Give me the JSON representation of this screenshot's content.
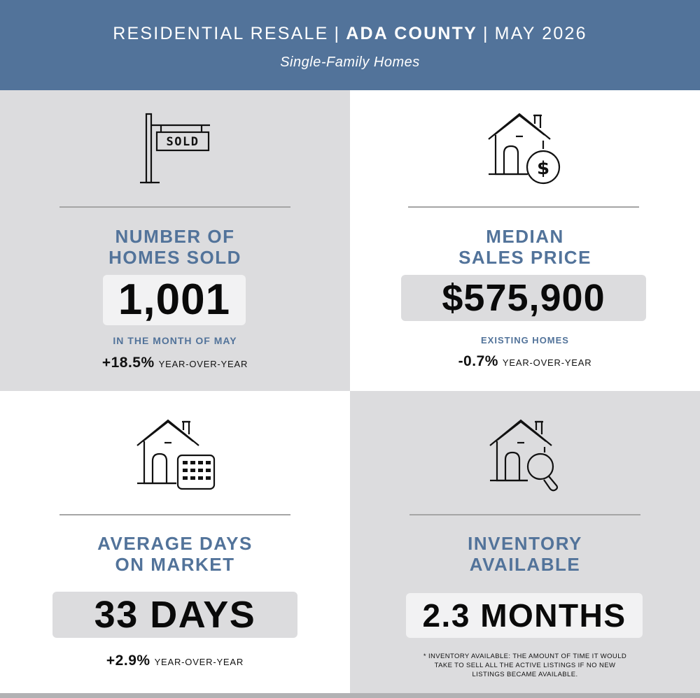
{
  "header": {
    "title_part1": "RESIDENTIAL RESALE",
    "title_part2": "ADA COUNTY",
    "title_part3": "MAY 2026",
    "separator": "|",
    "subtitle": "Single-Family Homes"
  },
  "cards": [
    {
      "icon": "sold-sign-icon",
      "sign_text": "SOLD",
      "label_line1": "NUMBER OF",
      "label_line2": "HOMES SOLD",
      "value": "1,001",
      "sub_label": "IN THE MONTH OF MAY",
      "yoy_pct": "+18.5%",
      "yoy_text": "YEAR-OVER-YEAR"
    },
    {
      "icon": "house-dollar-icon",
      "label_line1": "MEDIAN",
      "label_line2": "SALES PRICE",
      "value": "$575,900",
      "sub_label": "EXISTING HOMES",
      "yoy_pct": "-0.7%",
      "yoy_text": "YEAR-OVER-YEAR"
    },
    {
      "icon": "house-calendar-icon",
      "label_line1": "AVERAGE DAYS",
      "label_line2": "ON MARKET",
      "value": "33 DAYS",
      "yoy_pct": "+2.9%",
      "yoy_text": "YEAR-OVER-YEAR"
    },
    {
      "icon": "house-magnifier-icon",
      "label_line1": "INVENTORY",
      "label_line2": "AVAILABLE",
      "value": "2.3 MONTHS",
      "footnote_line1": "* INVENTORY AVAILABLE: THE AMOUNT OF TIME IT WOULD",
      "footnote_line2": "TAKE TO SELL ALL THE ACTIVE LISTINGS IF NO NEW",
      "footnote_line3": "LISTINGS BECAME AVAILABLE."
    }
  ],
  "colors": {
    "accent": "#52739a",
    "panel_gray": "#dcdcde",
    "value_box_light": "#f2f2f3",
    "value_box_dark": "#dcdcde"
  }
}
